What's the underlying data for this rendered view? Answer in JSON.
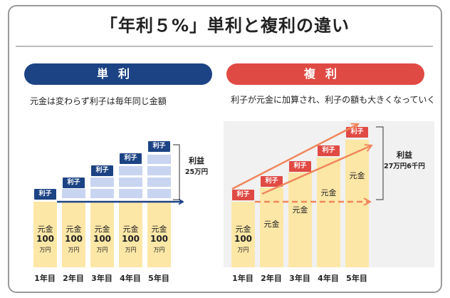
{
  "title": "「年利５%」単利と複利の違い",
  "simple": {
    "header": "単利",
    "description": "元金は変わらず利子は毎年同じ金額",
    "interest_tag": "利子",
    "principal_label": "元金",
    "principal_value": "100",
    "principal_unit": "万円",
    "gain_label": "利益",
    "gain_value": "25万円",
    "interest_blocks_by_year": [
      1,
      2,
      3,
      4,
      5
    ],
    "colors": {
      "header": "#1c4384",
      "principal": "#fde7a7",
      "interest": "#c9d5f0"
    }
  },
  "compound": {
    "header": "複利",
    "description": "利子が元金に加算され、利子の額も大きくなっていく",
    "interest_tag": "利子",
    "principal_label": "元金",
    "principal_value": "100",
    "principal_unit": "万円",
    "gain_label": "利益",
    "gain_value": "27万円6千円",
    "colors": {
      "header": "#e04a44",
      "principal": "#fde7a7",
      "arrow": "#f0875c"
    }
  },
  "years": [
    "1年目",
    "2年目",
    "3年目",
    "4年目",
    "5年目"
  ]
}
